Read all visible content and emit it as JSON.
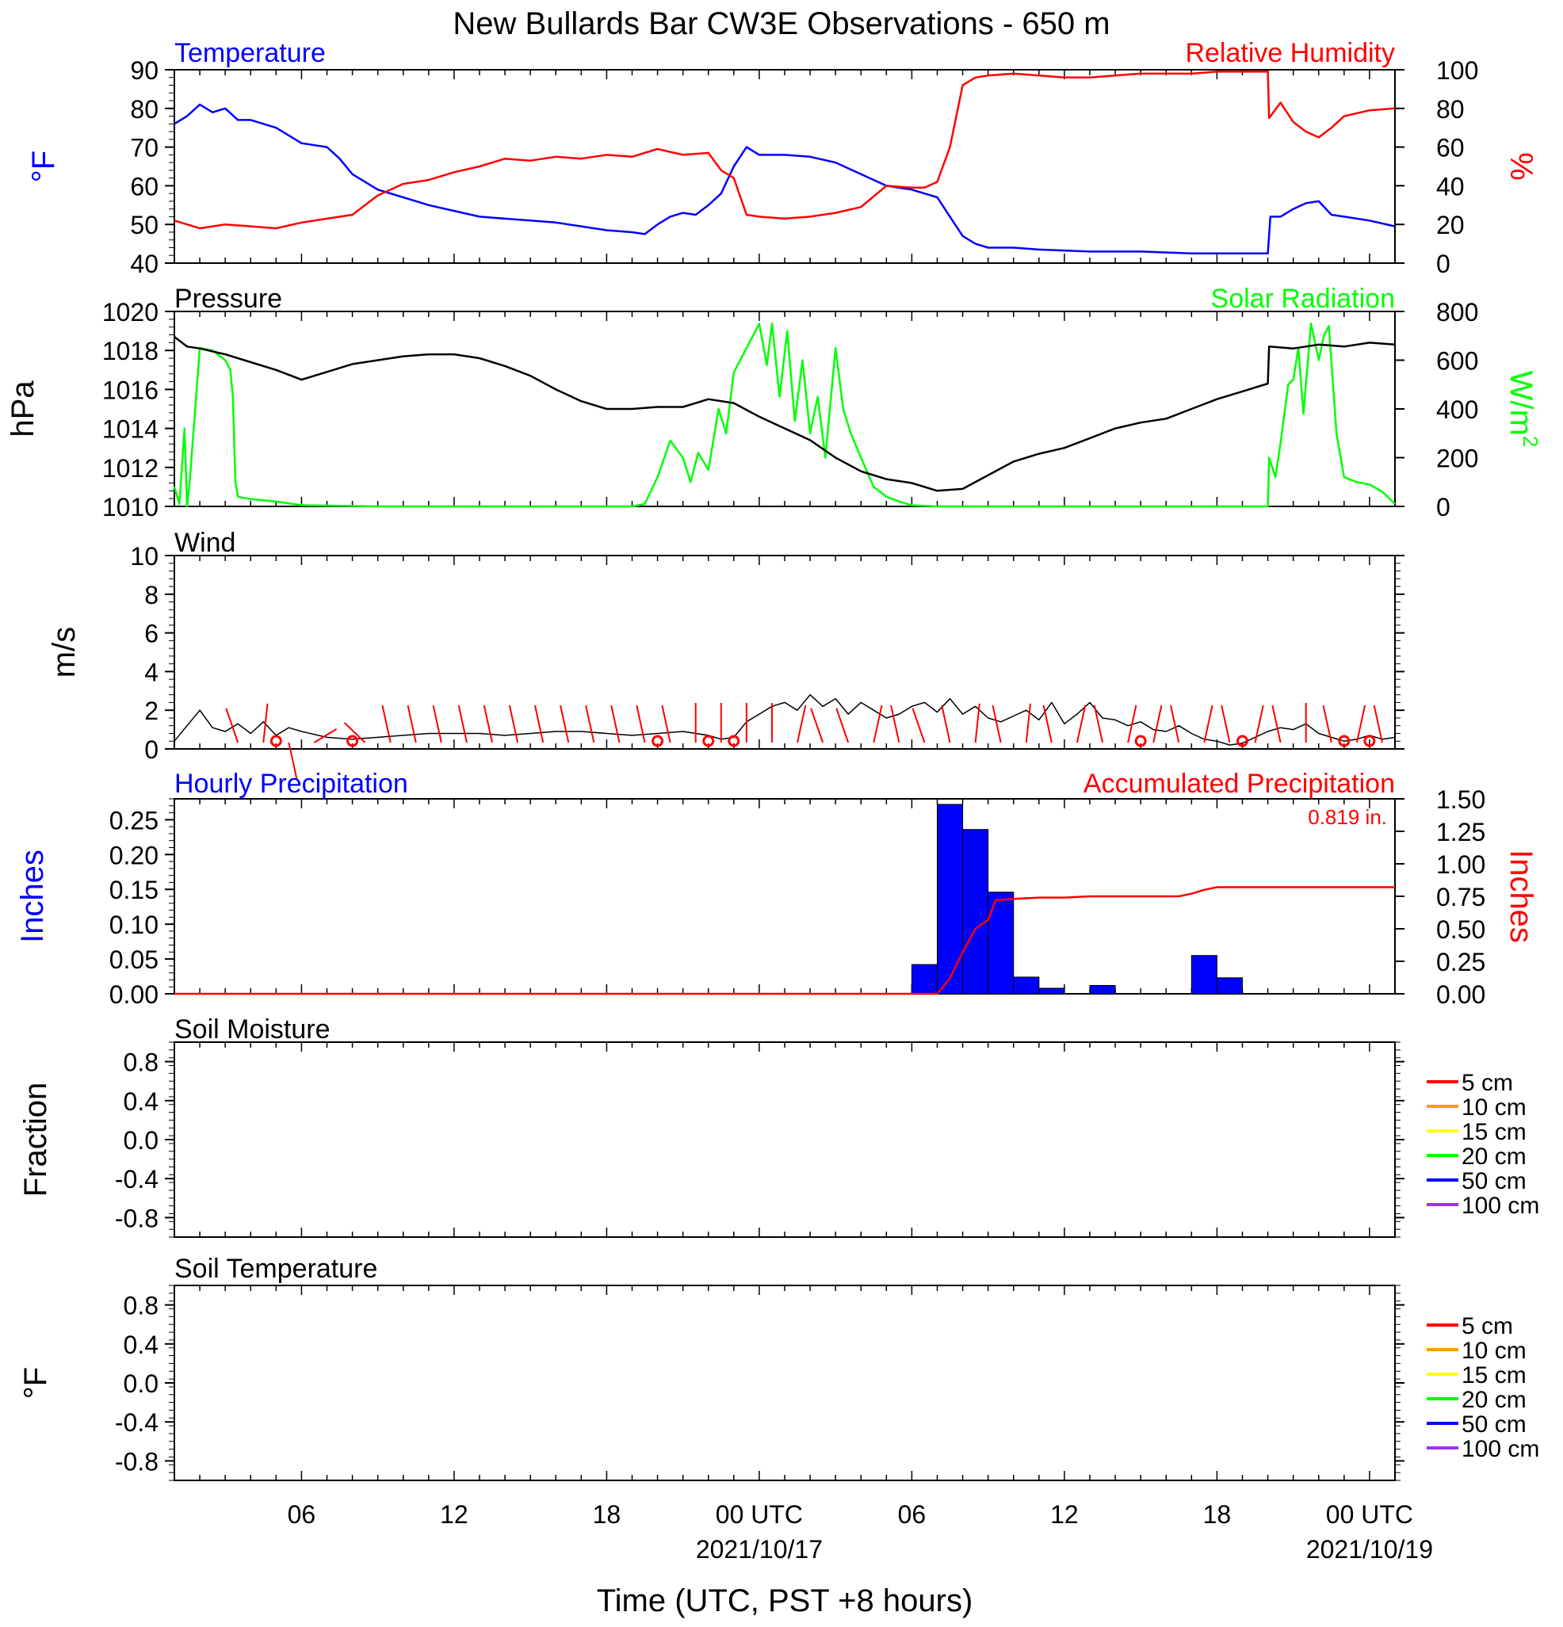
{
  "title": "New Bullards Bar CW3E Observations - 650 m",
  "colors": {
    "temperature": "#0000ff",
    "humidity": "#ff0000",
    "pressure": "#000000",
    "solar": "#00ff00",
    "wind": "#000000",
    "barbs": "#ff0000",
    "hourly_precip": "#0000ff",
    "accum_precip": "#ff0000",
    "soil_5": "#ff0000",
    "soil_10": "#ff9900",
    "soil_15": "#ffff00",
    "soil_20": "#00ff00",
    "soil_50": "#0000ff",
    "soil_100": "#9933ff"
  },
  "time_axis": {
    "label": "Time (UTC, PST +8 hours)",
    "range_hours": [
      0,
      48
    ],
    "ticks": [
      {
        "h": 5,
        "label": "06",
        "date": ""
      },
      {
        "h": 11,
        "label": "12",
        "date": ""
      },
      {
        "h": 17,
        "label": "18",
        "date": ""
      },
      {
        "h": 23,
        "label": "00 UTC",
        "date": "2021/10/17"
      },
      {
        "h": 29,
        "label": "06",
        "date": ""
      },
      {
        "h": 35,
        "label": "12",
        "date": ""
      },
      {
        "h": 41,
        "label": "18",
        "date": ""
      },
      {
        "h": 47,
        "label": "00 UTC",
        "date": "2021/10/19"
      }
    ]
  },
  "chart_data": [
    {
      "type": "line",
      "panel": "temperature-humidity",
      "left_title": "Temperature",
      "right_title": "Relative Humidity",
      "ylabel_left": "°F",
      "ylabel_right": "%",
      "ylim_left": [
        40,
        90
      ],
      "yticks_left": [
        40,
        50,
        60,
        70,
        80,
        90
      ],
      "ylim_right": [
        0,
        100
      ],
      "yticks_right": [
        0,
        20,
        40,
        60,
        80,
        100
      ],
      "series": [
        {
          "name": "Temperature",
          "axis": "left",
          "x": [
            0,
            0.5,
            1,
            1.5,
            2,
            2.5,
            3,
            4,
            5,
            5.5,
            6,
            6.5,
            7,
            8,
            9,
            10,
            11,
            12,
            13,
            14,
            15,
            16,
            17,
            18,
            18.5,
            19,
            19.5,
            20,
            20.5,
            21,
            21.5,
            22,
            22.5,
            23,
            24,
            25,
            26,
            27,
            28,
            29,
            29.5,
            30,
            30.5,
            31,
            31.5,
            32,
            33,
            34,
            36,
            38,
            40,
            42,
            43,
            43.1,
            43.5,
            44,
            44.5,
            45,
            45.5,
            46,
            47,
            48
          ],
          "y": [
            76,
            78,
            81,
            79,
            80,
            77,
            77,
            75,
            71,
            70.5,
            70,
            67,
            63,
            59,
            57,
            55,
            53.5,
            52,
            51.5,
            51,
            50.5,
            49.5,
            48.5,
            48,
            47.5,
            50,
            52,
            53,
            52.5,
            55,
            58,
            65,
            70,
            68,
            68,
            67.5,
            66,
            63,
            60,
            59,
            58,
            57,
            52,
            47,
            45,
            44,
            44,
            43.5,
            43,
            43,
            42.5,
            42.5,
            42.5,
            52,
            52,
            54,
            55.5,
            56,
            52.5,
            52,
            51,
            49.5
          ]
        },
        {
          "name": "Relative Humidity",
          "axis": "right",
          "x": [
            0,
            0.5,
            1,
            2,
            3,
            4,
            5,
            6,
            7,
            8,
            9,
            10,
            11,
            12,
            13,
            14,
            15,
            16,
            17,
            18,
            19,
            20,
            21,
            21.5,
            22,
            22.5,
            23,
            24,
            25,
            26,
            27,
            28,
            29,
            29.5,
            30,
            30.5,
            31,
            31.5,
            32,
            33,
            34,
            35,
            36,
            37,
            38,
            39,
            40,
            41,
            42,
            43,
            43.05,
            43.5,
            44,
            44.5,
            45,
            45.5,
            46,
            47,
            48
          ],
          "y": [
            22,
            20,
            18,
            20,
            19,
            18,
            21,
            23,
            25,
            35,
            41,
            43,
            47,
            50,
            54,
            53,
            55,
            54,
            56,
            55,
            59,
            56,
            57,
            48,
            44,
            25,
            24,
            23,
            24,
            26,
            29,
            40,
            39,
            39,
            42,
            60,
            92,
            96,
            97,
            98,
            97,
            96,
            96,
            97,
            98,
            98,
            98,
            99,
            99,
            99,
            75,
            83,
            73,
            68,
            65,
            70,
            76,
            79,
            80
          ]
        }
      ]
    },
    {
      "type": "line",
      "panel": "pressure-solar",
      "left_title": "Pressure",
      "right_title": "Solar Radiation",
      "ylabel_left": "hPa",
      "ylabel_right": "W/m",
      "ylabel_right_sup": "2",
      "ylim_left": [
        1010,
        1020
      ],
      "yticks_left": [
        1010,
        1012,
        1014,
        1016,
        1018,
        1020
      ],
      "ylim_right": [
        0,
        800
      ],
      "yticks_right": [
        0,
        200,
        400,
        600,
        800
      ],
      "series": [
        {
          "name": "Pressure",
          "axis": "left",
          "x": [
            0,
            0.5,
            1,
            2,
            3,
            4,
            5,
            6,
            7,
            8,
            9,
            10,
            11,
            12,
            13,
            14,
            15,
            16,
            17,
            18,
            19,
            20,
            21,
            22,
            23,
            24,
            25,
            26,
            27,
            28,
            29,
            30,
            31,
            32,
            33,
            34,
            35,
            36,
            37,
            38,
            39,
            40,
            41,
            42,
            43,
            43.05,
            44,
            45,
            46,
            47,
            48
          ],
          "y": [
            1018.7,
            1018.2,
            1018.1,
            1017.8,
            1017.4,
            1017.0,
            1016.5,
            1016.9,
            1017.3,
            1017.5,
            1017.7,
            1017.8,
            1017.8,
            1017.6,
            1017.2,
            1016.7,
            1016.0,
            1015.4,
            1015.0,
            1015.0,
            1015.1,
            1015.1,
            1015.5,
            1015.3,
            1014.6,
            1014.0,
            1013.4,
            1012.5,
            1011.8,
            1011.4,
            1011.2,
            1010.8,
            1010.9,
            1011.6,
            1012.3,
            1012.7,
            1013.0,
            1013.5,
            1014.0,
            1014.3,
            1014.5,
            1015.0,
            1015.5,
            1015.9,
            1016.3,
            1018.2,
            1018.1,
            1018.3,
            1018.2,
            1018.4,
            1018.3
          ]
        },
        {
          "name": "Solar Radiation",
          "axis": "right",
          "x": [
            0,
            0.2,
            0.4,
            0.5,
            0.6,
            1.0,
            1.5,
            2.0,
            2.2,
            2.3,
            2.4,
            2.5,
            3,
            4,
            5,
            8,
            18,
            18.5,
            19,
            19.5,
            20,
            20.3,
            20.6,
            21,
            21.4,
            21.7,
            22,
            22.5,
            23,
            23.3,
            23.5,
            23.8,
            24.1,
            24.4,
            24.7,
            25,
            25.3,
            25.6,
            26,
            26.3,
            26.6,
            27,
            27.5,
            28,
            28.5,
            29,
            30,
            35,
            42,
            43,
            43.05,
            43.3,
            43.5,
            43.8,
            44,
            44.2,
            44.4,
            44.7,
            45,
            45.2,
            45.4,
            45.7,
            46,
            46.5,
            47,
            47.5,
            48
          ],
          "y": [
            80,
            10,
            320,
            0,
            100,
            650,
            640,
            600,
            560,
            450,
            100,
            40,
            30,
            20,
            5,
            0,
            0,
            10,
            120,
            270,
            200,
            100,
            220,
            150,
            400,
            300,
            550,
            650,
            750,
            580,
            750,
            450,
            720,
            350,
            600,
            300,
            450,
            200,
            650,
            400,
            300,
            200,
            80,
            40,
            20,
            5,
            0,
            0,
            0,
            0,
            200,
            120,
            260,
            500,
            520,
            650,
            380,
            750,
            600,
            700,
            740,
            300,
            120,
            100,
            90,
            60,
            10
          ]
        }
      ]
    },
    {
      "type": "line",
      "panel": "wind",
      "left_title": "Wind",
      "ylabel_left": "m/s",
      "ylim_left": [
        0,
        10
      ],
      "yticks_left": [
        0,
        2,
        4,
        6,
        8,
        10
      ],
      "series": [
        {
          "name": "Wind",
          "x": [
            0,
            0.5,
            1,
            1.5,
            2,
            2.5,
            3,
            3.5,
            4,
            4.5,
            5,
            6,
            7,
            8,
            9,
            10,
            11,
            12,
            13,
            14,
            15,
            16,
            17,
            18,
            19,
            20,
            21,
            21.5,
            22,
            22.5,
            23,
            23.5,
            24,
            24.5,
            25,
            25.5,
            26,
            26.5,
            27,
            27.5,
            28,
            28.5,
            29,
            29.5,
            30,
            30.5,
            31,
            31.5,
            32,
            32.5,
            33,
            33.5,
            34,
            34.5,
            35,
            35.5,
            36,
            36.5,
            37,
            37.5,
            38,
            38.5,
            39,
            39.5,
            40,
            40.5,
            41,
            41.5,
            42,
            42.5,
            43,
            43.5,
            44,
            44.5,
            45,
            45.5,
            46,
            46.5,
            47,
            47.5,
            48
          ],
          "y": [
            0.4,
            1.2,
            2.0,
            1.1,
            0.9,
            1.3,
            0.8,
            1.4,
            0.7,
            1.1,
            0.9,
            0.6,
            0.5,
            0.6,
            0.7,
            0.8,
            0.8,
            0.8,
            0.7,
            0.8,
            0.9,
            0.9,
            0.8,
            0.7,
            0.8,
            0.9,
            0.7,
            0.5,
            0.6,
            1.4,
            1.8,
            2.2,
            2.4,
            2.0,
            2.8,
            2.2,
            2.6,
            1.8,
            2.4,
            2.0,
            1.6,
            1.8,
            2.2,
            2.4,
            1.9,
            2.6,
            1.8,
            2.2,
            1.6,
            1.4,
            1.7,
            2.0,
            1.5,
            2.4,
            1.3,
            1.8,
            2.4,
            1.6,
            1.5,
            1.2,
            1.4,
            1.0,
            0.9,
            1.2,
            0.8,
            0.5,
            0.4,
            0.2,
            0.3,
            0.6,
            0.9,
            1.1,
            1.0,
            1.3,
            0.8,
            0.6,
            0.4,
            0.5,
            0.7,
            0.5,
            0.6
          ]
        },
        {
          "name": "Barbs",
          "x": [
            2.5,
            3.5,
            4.5,
            5.5,
            7.5,
            8.5,
            9.5,
            10.5,
            11.5,
            12.5,
            13.5,
            14.5,
            15.5,
            16.5,
            17.5,
            18.5,
            19.5,
            20.5,
            21.5,
            22.5,
            23.5,
            24.5,
            25.5,
            26.5,
            27.5,
            28.5,
            29.5,
            30.5,
            31.5,
            32.5,
            33.5,
            34.5,
            35.5,
            36.5,
            37.5,
            38.5,
            39.5,
            40.5,
            41.5,
            42.5,
            43.5,
            44.5,
            45.5,
            46.5,
            47.5
          ],
          "dir_deg": [
            330,
            10,
            160,
            70,
            300,
            340,
            340,
            340,
            340,
            340,
            340,
            340,
            340,
            340,
            340,
            340,
            340,
            0,
            0,
            0,
            0,
            20,
            330,
            330,
            20,
            340,
            330,
            340,
            10,
            340,
            10,
            340,
            20,
            340,
            20,
            20,
            340,
            20,
            340,
            20,
            340,
            0,
            340,
            20,
            340
          ],
          "calm_hours": [
            4.0,
            7.0,
            19.0,
            21.0,
            22.0,
            38.0,
            42.0,
            46.0,
            47.0
          ]
        }
      ]
    },
    {
      "type": "bar",
      "panel": "precipitation",
      "left_title": "Hourly Precipitation",
      "right_title": "Accumulated Precipitation",
      "total_label": "0.819 in.",
      "ylabel_left": "Inches",
      "ylabel_right": "Inches",
      "ylim_left": [
        0,
        0.28
      ],
      "yticks_left": [
        "0.00",
        "0.05",
        "0.10",
        "0.15",
        "0.20",
        "0.25"
      ],
      "ylim_right": [
        0,
        1.5
      ],
      "yticks_right": [
        "0.00",
        "0.25",
        "0.50",
        "0.75",
        "1.00",
        "1.25",
        "1.50"
      ],
      "hourly": {
        "x": [
          29,
          30,
          31,
          32,
          33,
          34,
          36,
          40,
          41
        ],
        "values": [
          0.042,
          0.272,
          0.236,
          0.146,
          0.024,
          0.008,
          0.012,
          0.055,
          0.023
        ]
      },
      "accumulated": {
        "x": [
          0,
          30,
          30.5,
          31,
          31.5,
          32,
          32.3,
          33,
          34,
          35,
          36,
          37,
          38,
          39,
          39.5,
          40,
          40.5,
          41,
          42,
          48
        ],
        "y": [
          0,
          0,
          0.12,
          0.32,
          0.5,
          0.57,
          0.72,
          0.73,
          0.74,
          0.74,
          0.75,
          0.75,
          0.75,
          0.75,
          0.75,
          0.77,
          0.8,
          0.82,
          0.82,
          0.82
        ]
      }
    },
    {
      "type": "line",
      "panel": "soil-moisture",
      "left_title": "Soil Moisture",
      "ylabel_left": "Fraction",
      "ylim_left": [
        -1,
        1
      ],
      "yticks_left": [
        "-0.8",
        "-0.4",
        "0.0",
        "0.4",
        "0.8"
      ],
      "series": []
    },
    {
      "type": "line",
      "panel": "soil-temperature",
      "left_title": "Soil Temperature",
      "ylabel_left": "°F",
      "ylim_left": [
        -1,
        1
      ],
      "yticks_left": [
        "-0.8",
        "-0.4",
        "0.0",
        "0.4",
        "0.8"
      ],
      "series": []
    }
  ],
  "soil_legend": [
    {
      "label": "5 cm",
      "color_key": "soil_5"
    },
    {
      "label": "10 cm",
      "color_key": "soil_10"
    },
    {
      "label": "15 cm",
      "color_key": "soil_15"
    },
    {
      "label": "20 cm",
      "color_key": "soil_20"
    },
    {
      "label": "50 cm",
      "color_key": "soil_50"
    },
    {
      "label": "100 cm",
      "color_key": "soil_100"
    }
  ]
}
